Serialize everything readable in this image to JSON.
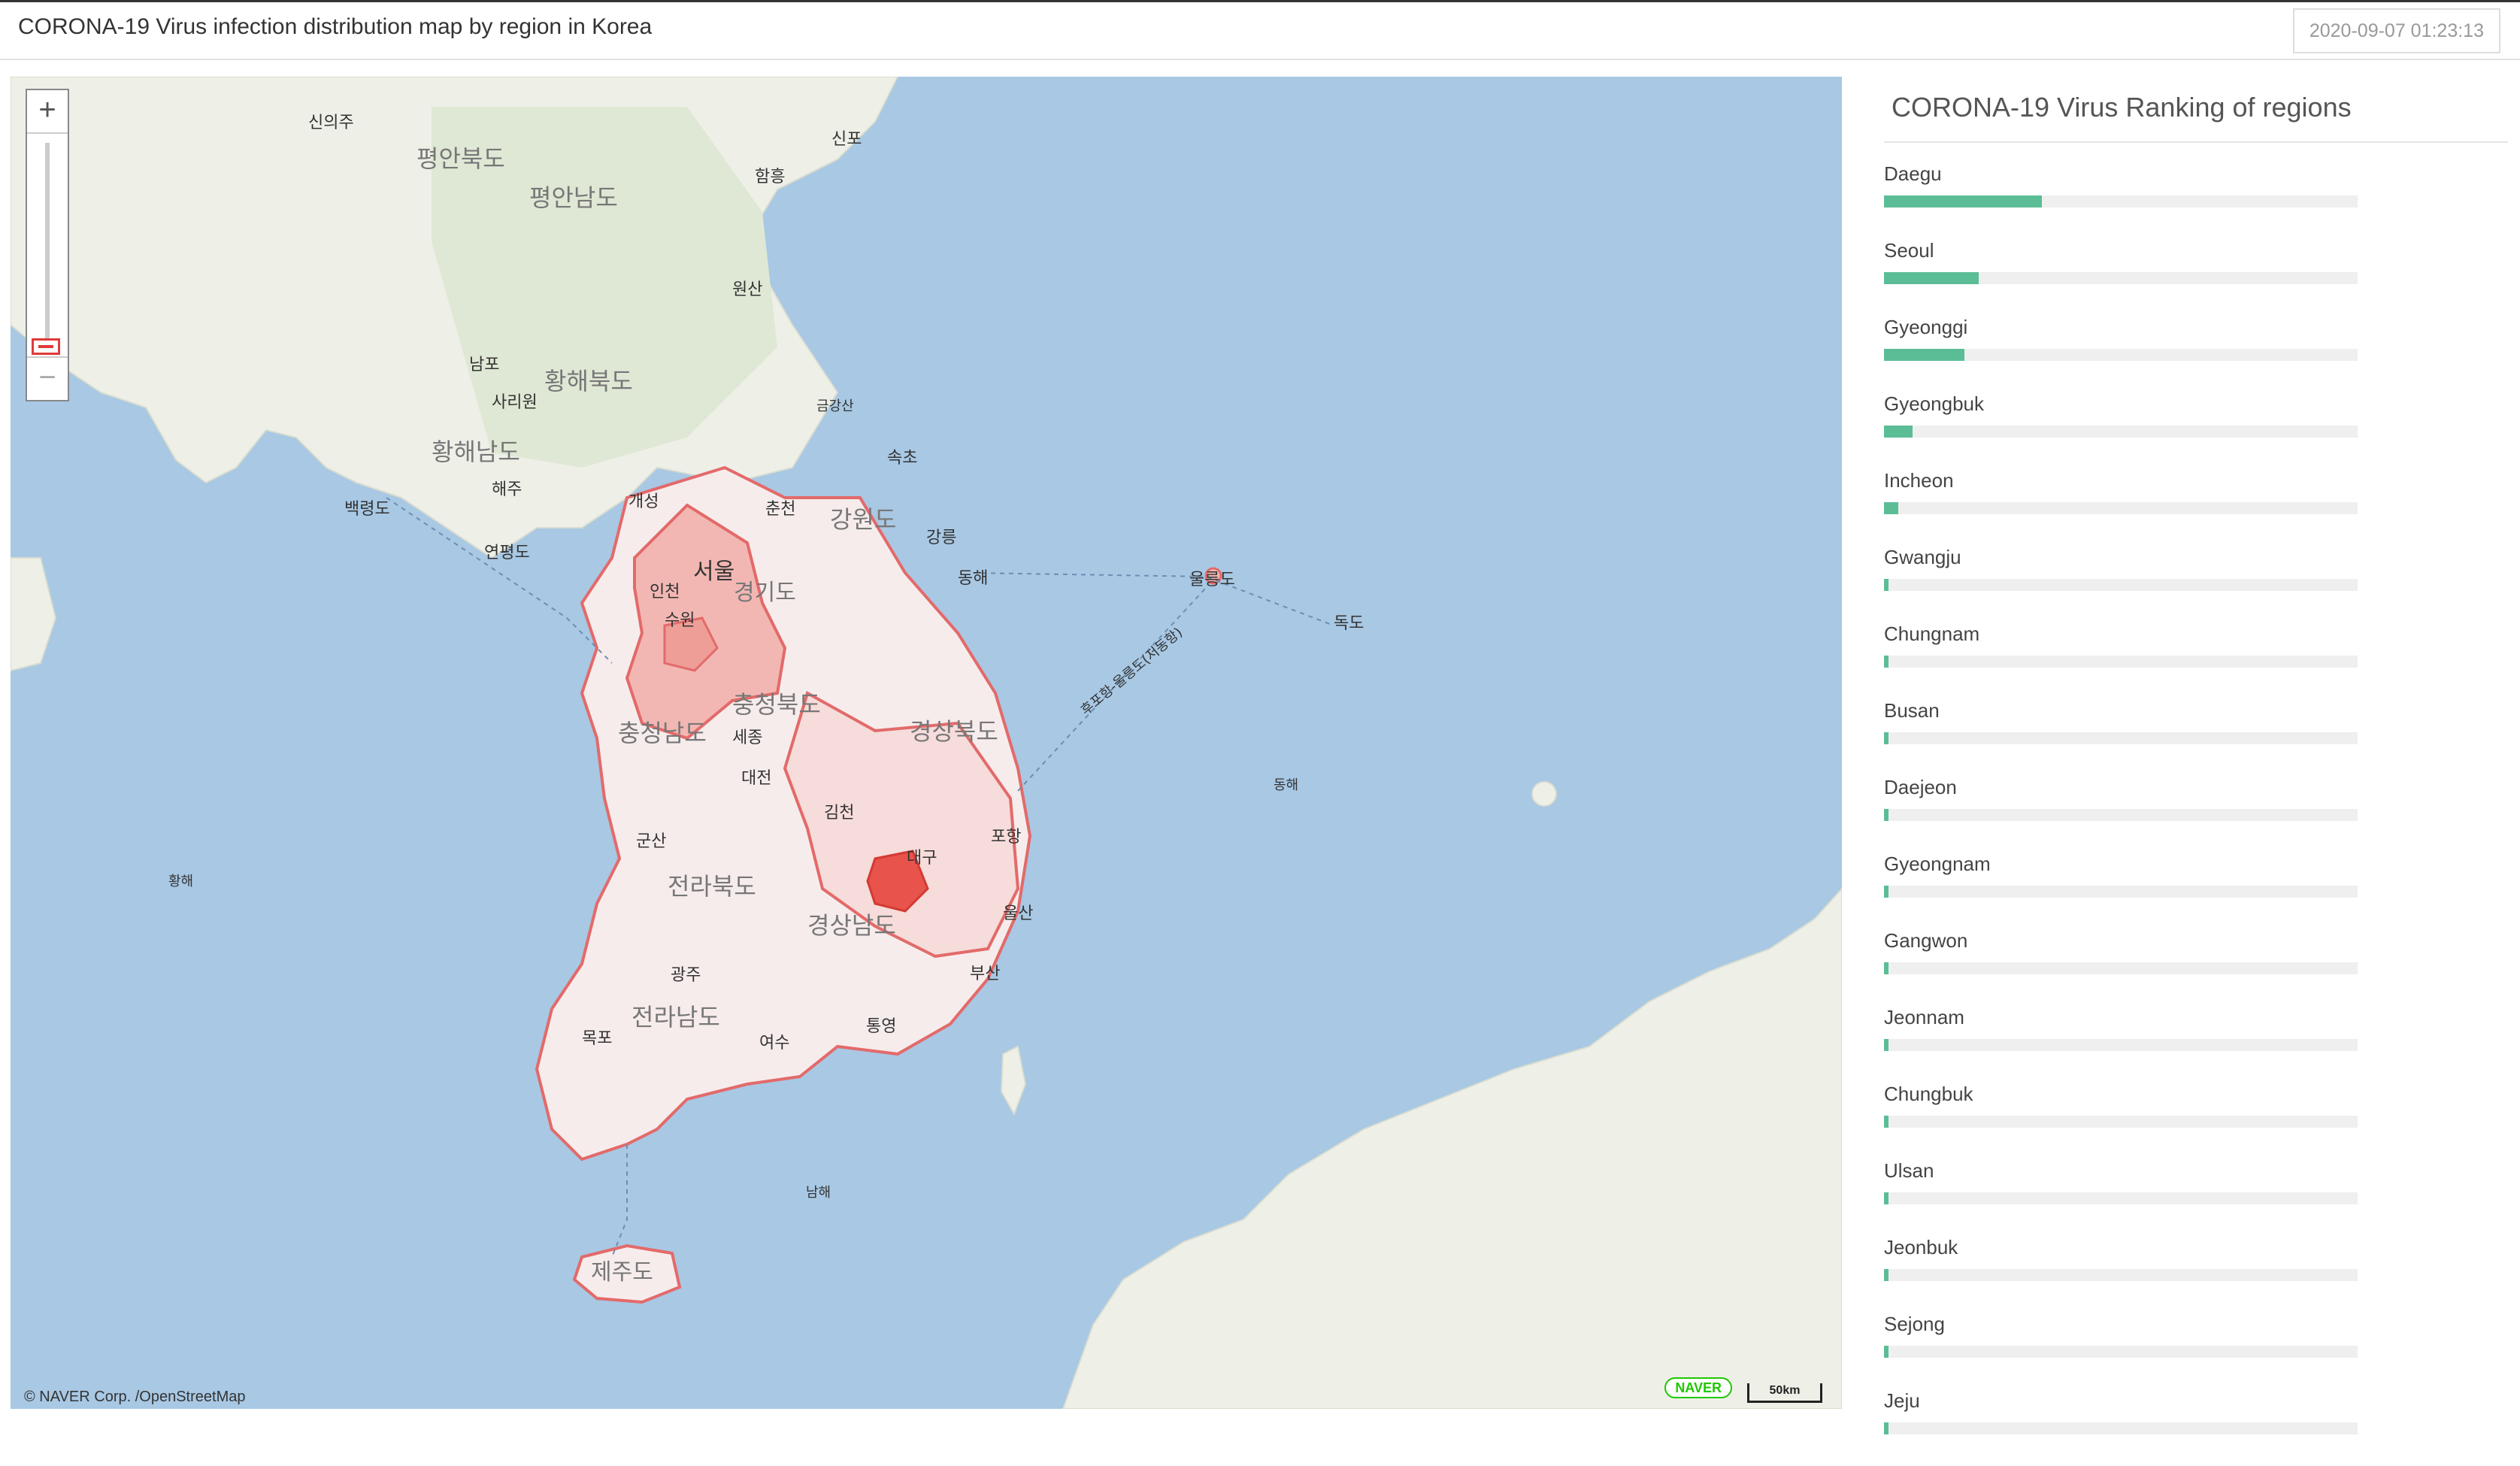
{
  "header": {
    "title": "CORONA-19 Virus infection distribution map by region in Korea",
    "timestamp": "2020-09-07 01:23:13"
  },
  "map": {
    "zoom_in_label": "+",
    "zoom_out_label": "−",
    "attribution": "© NAVER Corp. /OpenStreetMap",
    "logo": "NAVER",
    "scale": "50km",
    "labels": {
      "sinuiju": "신의주",
      "pyeonganbukdo": "평안북도",
      "pyeongannamdo": "평안남도",
      "sinpo": "신포",
      "hamheung": "함흥",
      "wonsan": "원산",
      "nampo": "남포",
      "hwanghaebukdo": "황해북도",
      "sariwon": "사리원",
      "geumgangsan": "금강산",
      "hwanghaenamdo": "황해남도",
      "haeju": "해주",
      "baengnyeongdo": "백령도",
      "gaeseong": "개성",
      "chuncheon": "춘천",
      "gangwondo": "강원도",
      "sokcho": "속초",
      "gangneung": "강릉",
      "yeonpyeongdo": "연평도",
      "seoul": "서울",
      "incheon": "인천",
      "gyeonggido": "경기도",
      "donghae": "동해",
      "ulleungdo": "울릉도",
      "dokdo": "독도",
      "suwon": "수원",
      "route": "후포항-울릉도(저동항)",
      "chungcheongbukdo": "충청북도",
      "gyeongsangbukdo": "경상북도",
      "chungcheongnamdo": "충청남도",
      "sejong": "세종",
      "daejeon": "대전",
      "east_sea": "동해",
      "gimcheon": "김천",
      "gunsan": "군산",
      "pohang": "포항",
      "daegu": "대구",
      "yellow_sea": "황해",
      "jeollabukdo": "전라북도",
      "ulsan": "울산",
      "gyeongsangnamdo": "경상남도",
      "gwangju": "광주",
      "busan": "부산",
      "jeollanamdo": "전라남도",
      "mokpo": "목포",
      "tongyeong": "통영",
      "yeosu": "여수",
      "south_sea": "남해",
      "jejudo": "제주도"
    }
  },
  "ranking": {
    "title": "CORONA-19 Virus Ranking of regions",
    "items": [
      {
        "name": "Daegu",
        "fraction": 0.333
      },
      {
        "name": "Seoul",
        "fraction": 0.2
      },
      {
        "name": "Gyeonggi",
        "fraction": 0.17
      },
      {
        "name": "Gyeongbuk",
        "fraction": 0.06
      },
      {
        "name": "Incheon",
        "fraction": 0.03
      },
      {
        "name": "Gwangju",
        "fraction": 0.01
      },
      {
        "name": "Chungnam",
        "fraction": 0.01
      },
      {
        "name": "Busan",
        "fraction": 0.01
      },
      {
        "name": "Daejeon",
        "fraction": 0.01
      },
      {
        "name": "Gyeongnam",
        "fraction": 0.01
      },
      {
        "name": "Gangwon",
        "fraction": 0.01
      },
      {
        "name": "Jeonnam",
        "fraction": 0.01
      },
      {
        "name": "Chungbuk",
        "fraction": 0.01
      },
      {
        "name": "Ulsan",
        "fraction": 0.01
      },
      {
        "name": "Jeonbuk",
        "fraction": 0.01
      },
      {
        "name": "Sejong",
        "fraction": 0.01
      },
      {
        "name": "Jeju",
        "fraction": 0.01
      }
    ]
  }
}
